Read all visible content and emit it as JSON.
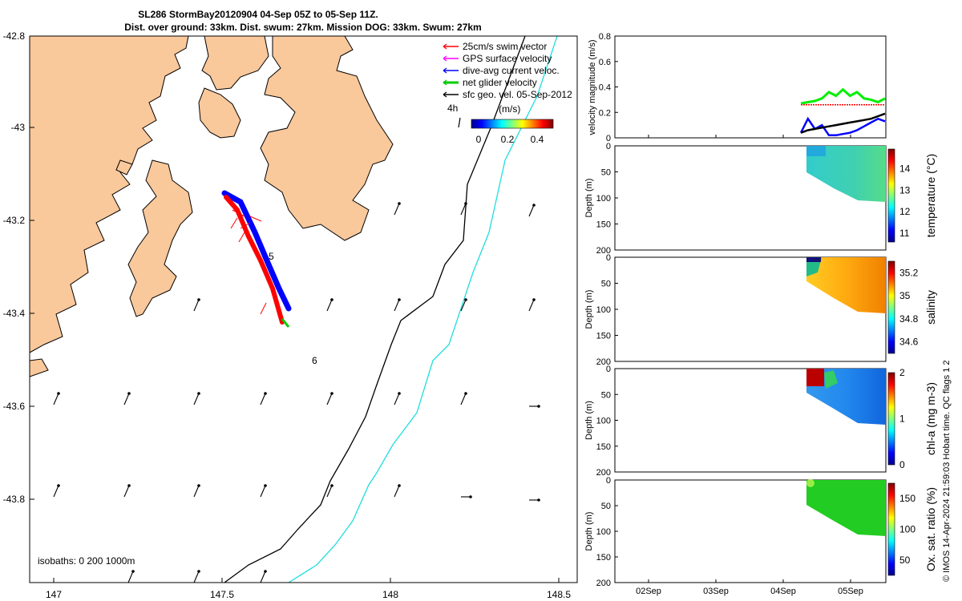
{
  "figure": {
    "title_line1": "SL286 StormBay20120904 04-Sep 05Z to 05-Sep 11Z.",
    "title_line2": "Dist. over ground: 33km. Dist. swum: 27km. Mission DOG: 33km. Swum: 27km",
    "credit": "© IMOS 14-Apr-2024 21:59:03 Hobart time. QC flags 1  2"
  },
  "map": {
    "xticks": [
      "147",
      "147.5",
      "148",
      "148.5"
    ],
    "yticks": [
      "-42.8",
      "-43",
      "-43.2",
      "-43.4",
      "-43.6",
      "-43.8"
    ],
    "isobath_label": "isobaths: 0   200  1000m",
    "mark_4h": "4h",
    "mark_5": "5",
    "mark_6": "6",
    "legend": [
      {
        "label": "25cm/s swim vector",
        "color": "#ff0000"
      },
      {
        "label": "GPS surface velocity",
        "color": "#ff00ff"
      },
      {
        "label": "dive-avg current veloc.",
        "color": "#0000ff"
      },
      {
        "label": "net glider velocity",
        "color": "#00cc00"
      },
      {
        "label": "sfc geo. vel. 05-Sep-2012",
        "color": "#000000"
      }
    ],
    "colorbar_unit": "(m/s)",
    "colorbar_ticks": [
      "0",
      "0.2",
      "0.4"
    ],
    "land_color": "#f9c89b",
    "isobath_200_color": "#000000",
    "isobath_1000_color": "#22dddd"
  },
  "chart_data": [
    {
      "type": "line",
      "ylabel": "velocity magnitude (m/s)",
      "yticks": [
        "0",
        "0.2",
        "0.4",
        "0.6",
        "0.8"
      ],
      "ylim": [
        0,
        0.8
      ],
      "x_tick_labels": [
        "02Sep",
        "03Sep",
        "04Sep",
        "05Sep"
      ],
      "series": [
        {
          "color": "#00ee00",
          "values": [
            0.27,
            0.28,
            0.29,
            0.31,
            0.36,
            0.33,
            0.38,
            0.33,
            0.36,
            0.31,
            0.3,
            0.28,
            0.31
          ]
        },
        {
          "color": "#ff0000",
          "values": [
            0.26,
            0.26,
            0.26,
            0.26,
            0.26,
            0.26,
            0.26,
            0.26,
            0.26,
            0.26,
            0.26,
            0.26,
            0.26
          ]
        },
        {
          "color": "#0000ff",
          "values": [
            0.04,
            0.15,
            0.07,
            0.1,
            0.02,
            0.02,
            0.03,
            0.04,
            0.06,
            0.09,
            0.12,
            0.15,
            0.13
          ]
        },
        {
          "color": "#000000",
          "values": [
            0.04,
            0.06,
            0.07,
            0.08,
            0.09,
            0.1,
            0.11,
            0.12,
            0.13,
            0.14,
            0.15,
            0.17,
            0.19
          ]
        }
      ]
    },
    {
      "type": "heatmap",
      "ylabel": "Depth (m)",
      "yticks": [
        "0",
        "50",
        "100",
        "150",
        "200"
      ],
      "colorbar_label": "temperature (°C)",
      "colorbar_ticks": [
        "11",
        "12",
        "13",
        "14"
      ],
      "colorbar_range": [
        10.6,
        14.9
      ]
    },
    {
      "type": "heatmap",
      "ylabel": "Depth (m)",
      "yticks": [
        "0",
        "50",
        "100",
        "150",
        "200"
      ],
      "colorbar_label": "salinity",
      "colorbar_ticks": [
        "34.6",
        "34.8",
        "35",
        "35.2"
      ],
      "colorbar_range": [
        34.5,
        35.3
      ]
    },
    {
      "type": "heatmap",
      "ylabel": "Depth (m)",
      "yticks": [
        "0",
        "50",
        "100",
        "150",
        "200"
      ],
      "colorbar_label": "chl-a (mg m-3)",
      "colorbar_ticks": [
        "0",
        "1",
        "2"
      ],
      "colorbar_range": [
        0,
        2
      ]
    },
    {
      "type": "heatmap",
      "ylabel": "Depth (m)",
      "yticks": [
        "0",
        "50",
        "100",
        "150",
        "200"
      ],
      "colorbar_label": "Ox. sat. ratio (%)",
      "colorbar_ticks": [
        "50",
        "100",
        "150"
      ],
      "colorbar_range": [
        25,
        175
      ],
      "x_tick_labels": [
        "02Sep",
        "03Sep",
        "04Sep",
        "05Sep"
      ]
    }
  ]
}
